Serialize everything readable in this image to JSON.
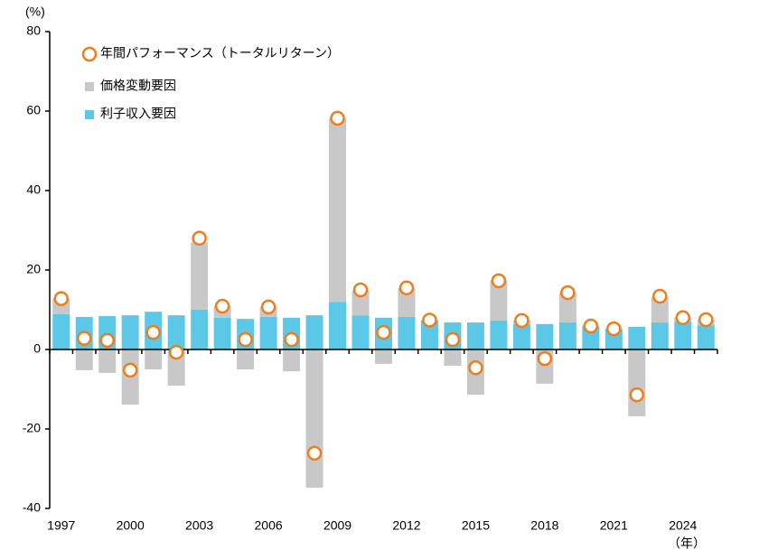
{
  "chart_data": {
    "type": "stacked-bar-marker",
    "y_unit_label": "(%)",
    "x_unit_label": "（年）",
    "categories": [
      "1997",
      null,
      null,
      "2000",
      null,
      null,
      "2003",
      null,
      null,
      "2006",
      null,
      null,
      "2009",
      null,
      null,
      "2012",
      null,
      null,
      "2015",
      null,
      null,
      "2018",
      null,
      null,
      "2021",
      null,
      null,
      "2024",
      null
    ],
    "series": [
      {
        "name": "年間パフォーマンス（トータルリターン）",
        "kind": "marker",
        "color": "#f07d1a",
        "values": [
          12.8,
          2.8,
          2.3,
          -5.2,
          4.3,
          -0.7,
          28.0,
          10.9,
          2.5,
          10.7,
          2.5,
          -26.1,
          58.2,
          15.0,
          4.3,
          15.5,
          7.4,
          2.5,
          -4.6,
          17.3,
          7.3,
          -2.3,
          14.3,
          5.9,
          5.2,
          -11.4,
          13.4,
          8.0,
          7.5
        ]
      },
      {
        "name": "価格変動要因",
        "kind": "bar",
        "color": "#c8c8c8",
        "values": [
          3.9,
          -5.2,
          -5.9,
          -13.9,
          -5.0,
          -9.1,
          17.0,
          2.9,
          -5.0,
          2.5,
          -5.5,
          -34.8,
          46.2,
          6.2,
          -3.6,
          7.3,
          0.1,
          -4.1,
          -11.4,
          10.0,
          0.9,
          -8.6,
          7.5,
          0.4,
          0.0,
          -16.8,
          6.4,
          1.0,
          1.4
        ]
      },
      {
        "name": "利子収入要因",
        "kind": "bar",
        "color": "#5bc8e8",
        "values": [
          8.9,
          8.2,
          8.4,
          8.6,
          9.5,
          8.6,
          10.0,
          8.0,
          7.7,
          8.2,
          8.0,
          8.6,
          12.0,
          8.6,
          8.0,
          8.2,
          7.3,
          6.8,
          6.8,
          7.3,
          6.4,
          6.4,
          6.8,
          5.7,
          5.2,
          5.7,
          6.8,
          7.0,
          6.1
        ]
      }
    ],
    "ylim": [
      -40,
      80
    ],
    "yticks": [
      -40,
      -20,
      0,
      20,
      40,
      60,
      80
    ],
    "legend": "upper-left"
  }
}
